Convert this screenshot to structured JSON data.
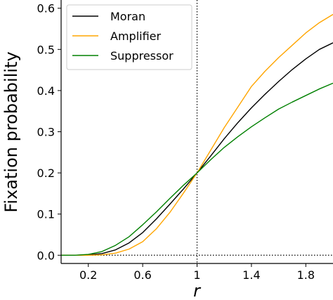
{
  "chart_data": {
    "type": "line",
    "xlabel": "r",
    "ylabel": "Fixation probability",
    "xlim": [
      0.0,
      2.0
    ],
    "ylim": [
      -0.02,
      0.62
    ],
    "x_ticks": [
      0.2,
      0.6,
      1.0,
      1.4,
      1.8
    ],
    "x_tick_labels": [
      "0.2",
      "0.6",
      "1",
      "1.4",
      "1.8"
    ],
    "y_ticks": [
      0.0,
      0.1,
      0.2,
      0.3,
      0.4,
      0.5,
      0.6
    ],
    "y_tick_labels": [
      "0.0",
      "0.1",
      "0.2",
      "0.3",
      "0.4",
      "0.5",
      "0.6"
    ],
    "grid": false,
    "legend_position": "top-left",
    "reference_lines": [
      {
        "orientation": "vertical",
        "value": 1.0,
        "style": "dotted",
        "color": "#000000"
      },
      {
        "orientation": "horizontal",
        "value": 0.0,
        "style": "dotted",
        "color": "#000000"
      }
    ],
    "series": [
      {
        "name": "Moran",
        "color": "#000000",
        "x": [
          0.0,
          0.1,
          0.2,
          0.3,
          0.4,
          0.5,
          0.6,
          0.7,
          0.8,
          0.9,
          1.0,
          1.1,
          1.2,
          1.3,
          1.4,
          1.5,
          1.6,
          1.7,
          1.8,
          1.9,
          2.0
        ],
        "y": [
          0.0,
          0.0,
          0.001,
          0.004,
          0.013,
          0.03,
          0.055,
          0.088,
          0.124,
          0.161,
          0.2,
          0.241,
          0.283,
          0.322,
          0.358,
          0.391,
          0.422,
          0.451,
          0.477,
          0.5,
          0.516
        ]
      },
      {
        "name": "Amplifier",
        "color": "#ffa500",
        "x": [
          0.0,
          0.1,
          0.2,
          0.3,
          0.4,
          0.5,
          0.6,
          0.7,
          0.8,
          0.9,
          1.0,
          1.1,
          1.2,
          1.3,
          1.4,
          1.5,
          1.6,
          1.7,
          1.8,
          1.9,
          2.0
        ],
        "y": [
          0.0,
          0.0,
          0.0,
          0.001,
          0.005,
          0.015,
          0.033,
          0.064,
          0.104,
          0.151,
          0.2,
          0.255,
          0.31,
          0.36,
          0.41,
          0.447,
          0.48,
          0.51,
          0.54,
          0.565,
          0.585
        ]
      },
      {
        "name": "Suppressor",
        "color": "#008000",
        "x": [
          0.0,
          0.1,
          0.2,
          0.3,
          0.4,
          0.5,
          0.6,
          0.7,
          0.8,
          0.9,
          1.0,
          1.1,
          1.2,
          1.3,
          1.4,
          1.5,
          1.6,
          1.7,
          1.8,
          1.9,
          2.0
        ],
        "y": [
          0.0,
          0.0,
          0.002,
          0.009,
          0.024,
          0.045,
          0.074,
          0.105,
          0.138,
          0.17,
          0.2,
          0.232,
          0.262,
          0.288,
          0.312,
          0.334,
          0.355,
          0.372,
          0.388,
          0.404,
          0.418
        ]
      }
    ]
  }
}
